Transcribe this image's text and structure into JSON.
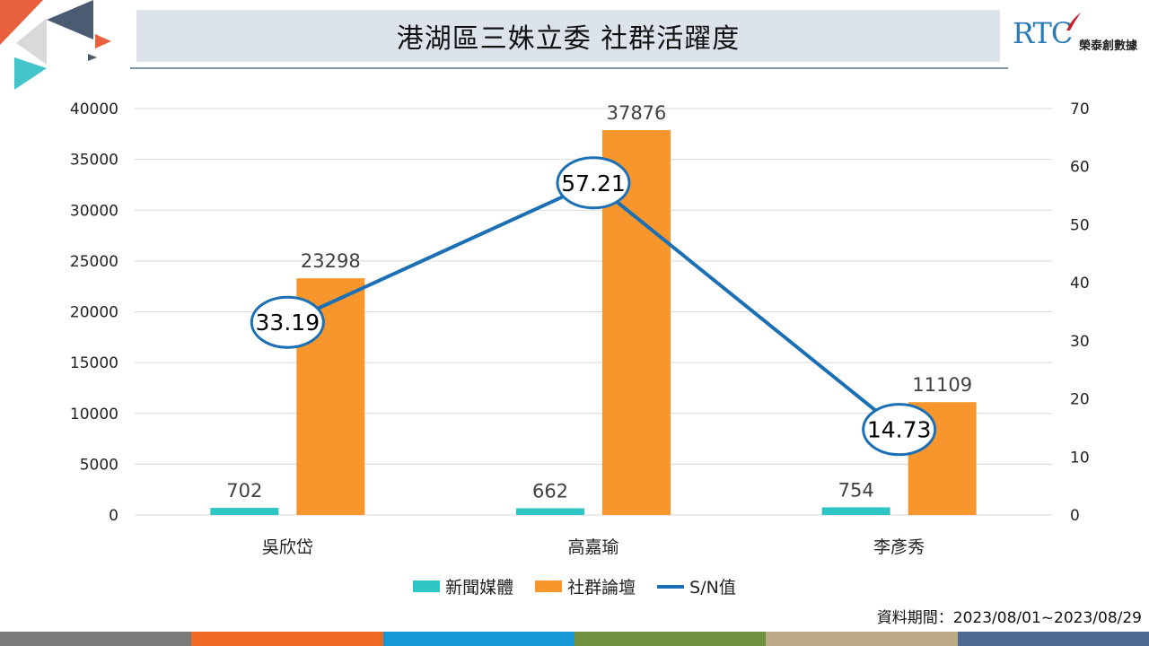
{
  "page": {
    "title": "港湖區三姝立委 社群活躍度",
    "logo_text": "RTC",
    "logo_name": "榮泰創數據",
    "footnote": "資料期間：2023/08/01~2023/08/29"
  },
  "colors": {
    "news": "#2ec5c5",
    "social": "#f7962d",
    "sn_line": "#1a6fb5",
    "bottom_bar": [
      "#7b7b7b",
      "#ee6a24",
      "#1698d6",
      "#72913e",
      "#bca98a",
      "#4e6a90"
    ]
  },
  "icons": [
    "triangle-deco-icon",
    "quill-logo-icon"
  ],
  "chart_data": {
    "type": "bar",
    "categories": [
      "吳欣岱",
      "高嘉瑜",
      "李彥秀"
    ],
    "series": [
      {
        "name": "新聞媒體",
        "type": "bar",
        "axis": "left",
        "values": [
          702,
          662,
          754
        ],
        "labels": [
          "702",
          "662",
          "754"
        ]
      },
      {
        "name": "社群論壇",
        "type": "bar",
        "axis": "left",
        "values": [
          23298,
          37876,
          11109
        ],
        "labels": [
          "23298",
          "37876",
          "11109"
        ]
      },
      {
        "name": "S/N值",
        "type": "line",
        "axis": "right",
        "values": [
          33.19,
          57.21,
          14.73
        ],
        "labels": [
          "33.19",
          "57.21",
          "14.73"
        ]
      }
    ],
    "left_axis": {
      "ylim": [
        0,
        40000
      ],
      "ticks": [
        "0",
        "5000",
        "10000",
        "15000",
        "20000",
        "25000",
        "30000",
        "35000",
        "40000"
      ]
    },
    "right_axis": {
      "ylim": [
        0,
        70
      ],
      "ticks": [
        "0",
        "10",
        "20",
        "30",
        "40",
        "50",
        "60",
        "70"
      ]
    },
    "grid": true,
    "legend_position": "bottom"
  }
}
